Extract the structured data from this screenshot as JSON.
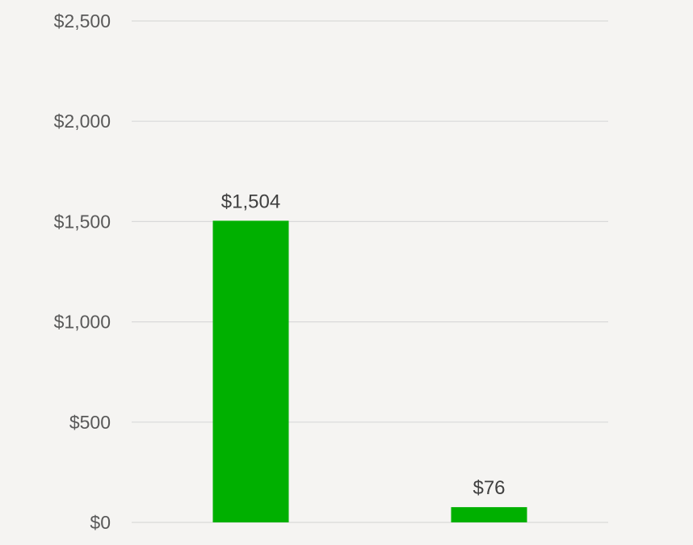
{
  "chart_data": {
    "type": "bar",
    "categories": [
      "",
      ""
    ],
    "values": [
      1504,
      76
    ],
    "data_labels": [
      "$1,504",
      "$76"
    ],
    "title": "",
    "xlabel": "",
    "ylabel": "",
    "ylim": [
      0,
      2500
    ],
    "y_ticks": [
      0,
      500,
      1000,
      1500,
      2000,
      2500
    ],
    "y_tick_labels": [
      "$0",
      "$500",
      "$1,000",
      "$1,500",
      "$2,000",
      "$2,500"
    ],
    "grid": true,
    "legend": "none",
    "bar_color": "#00b000",
    "background_color": "#f5f4f2"
  }
}
